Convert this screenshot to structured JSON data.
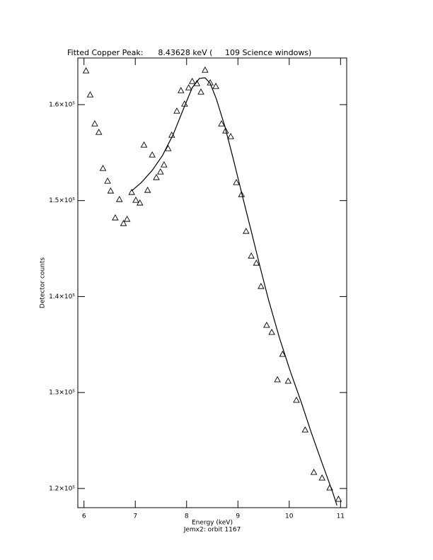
{
  "chart_data": {
    "type": "scatter",
    "title": "Fitted Copper Peak:      8.43628 keV (     109 Science windows)",
    "x_label": "Energy (keV)",
    "subtitle": "Jemx2: orbit 1167",
    "y_label": "Detector counts",
    "xlim": [
      5.88,
      11.12
    ],
    "ylim": [
      118000,
      164860
    ],
    "xticks": [
      6,
      7,
      8,
      9,
      10,
      11
    ],
    "yticks": [
      {
        "value": 120000,
        "label": "1.2×10⁵"
      },
      {
        "value": 130000,
        "label": "1.3×10⁵"
      },
      {
        "value": 140000,
        "label": "1.4×10⁵"
      },
      {
        "value": 150000,
        "label": "1.5×10⁵"
      },
      {
        "value": 160000,
        "label": "1.6×10⁵"
      }
    ],
    "series": [
      {
        "mode": "markers",
        "marker": "triangle",
        "color": "#000000",
        "x": [
          6.04,
          6.12,
          6.21,
          6.29,
          6.37,
          6.46,
          6.52,
          6.61,
          6.69,
          6.77,
          6.84,
          6.93,
          7.01,
          7.09,
          7.17,
          7.24,
          7.33,
          7.41,
          7.49,
          7.56,
          7.64,
          7.71,
          7.81,
          7.89,
          7.96,
          8.04,
          8.11,
          8.2,
          8.28,
          8.36,
          8.46,
          8.57,
          8.68,
          8.76,
          8.86,
          8.97,
          9.07,
          9.16,
          9.26,
          9.36,
          9.45,
          9.56,
          9.66,
          9.77,
          9.87,
          9.98,
          10.14,
          10.31,
          10.48,
          10.64,
          10.79,
          10.96
        ],
        "values": [
          163536,
          161031,
          158011,
          157127,
          153370,
          152044,
          151013,
          148214,
          150129,
          147624,
          148066,
          150866,
          150055,
          149761,
          155801,
          151087,
          154770,
          152413,
          153002,
          153738,
          155433,
          156832,
          159337,
          161473,
          160074,
          161768,
          162431,
          162210,
          161326,
          163610,
          162284,
          161915,
          158011,
          157274,
          156685,
          151897,
          150645,
          146814,
          144236,
          143499,
          141068,
          137017,
          136280,
          131344,
          133996,
          131197,
          129208,
          126114,
          121694,
          121105,
          120074,
          118895
        ]
      },
      {
        "mode": "line",
        "color": "#000000",
        "x": [
          6.93,
          7.12,
          7.33,
          7.53,
          7.74,
          7.95,
          8.11,
          8.25,
          8.36,
          8.46,
          8.58,
          8.75,
          8.91,
          9.08,
          9.26,
          9.44,
          9.6,
          9.81,
          10.02,
          10.23,
          10.43,
          10.64,
          10.85,
          10.93
        ],
        "values": [
          151013,
          151897,
          153149,
          154696,
          156906,
          159705,
          161768,
          162726,
          162799,
          162210,
          160590,
          157643,
          154328,
          150645,
          146814,
          142910,
          139595,
          135691,
          132228,
          129061,
          125820,
          122652,
          119558,
          118232
        ]
      }
    ]
  }
}
